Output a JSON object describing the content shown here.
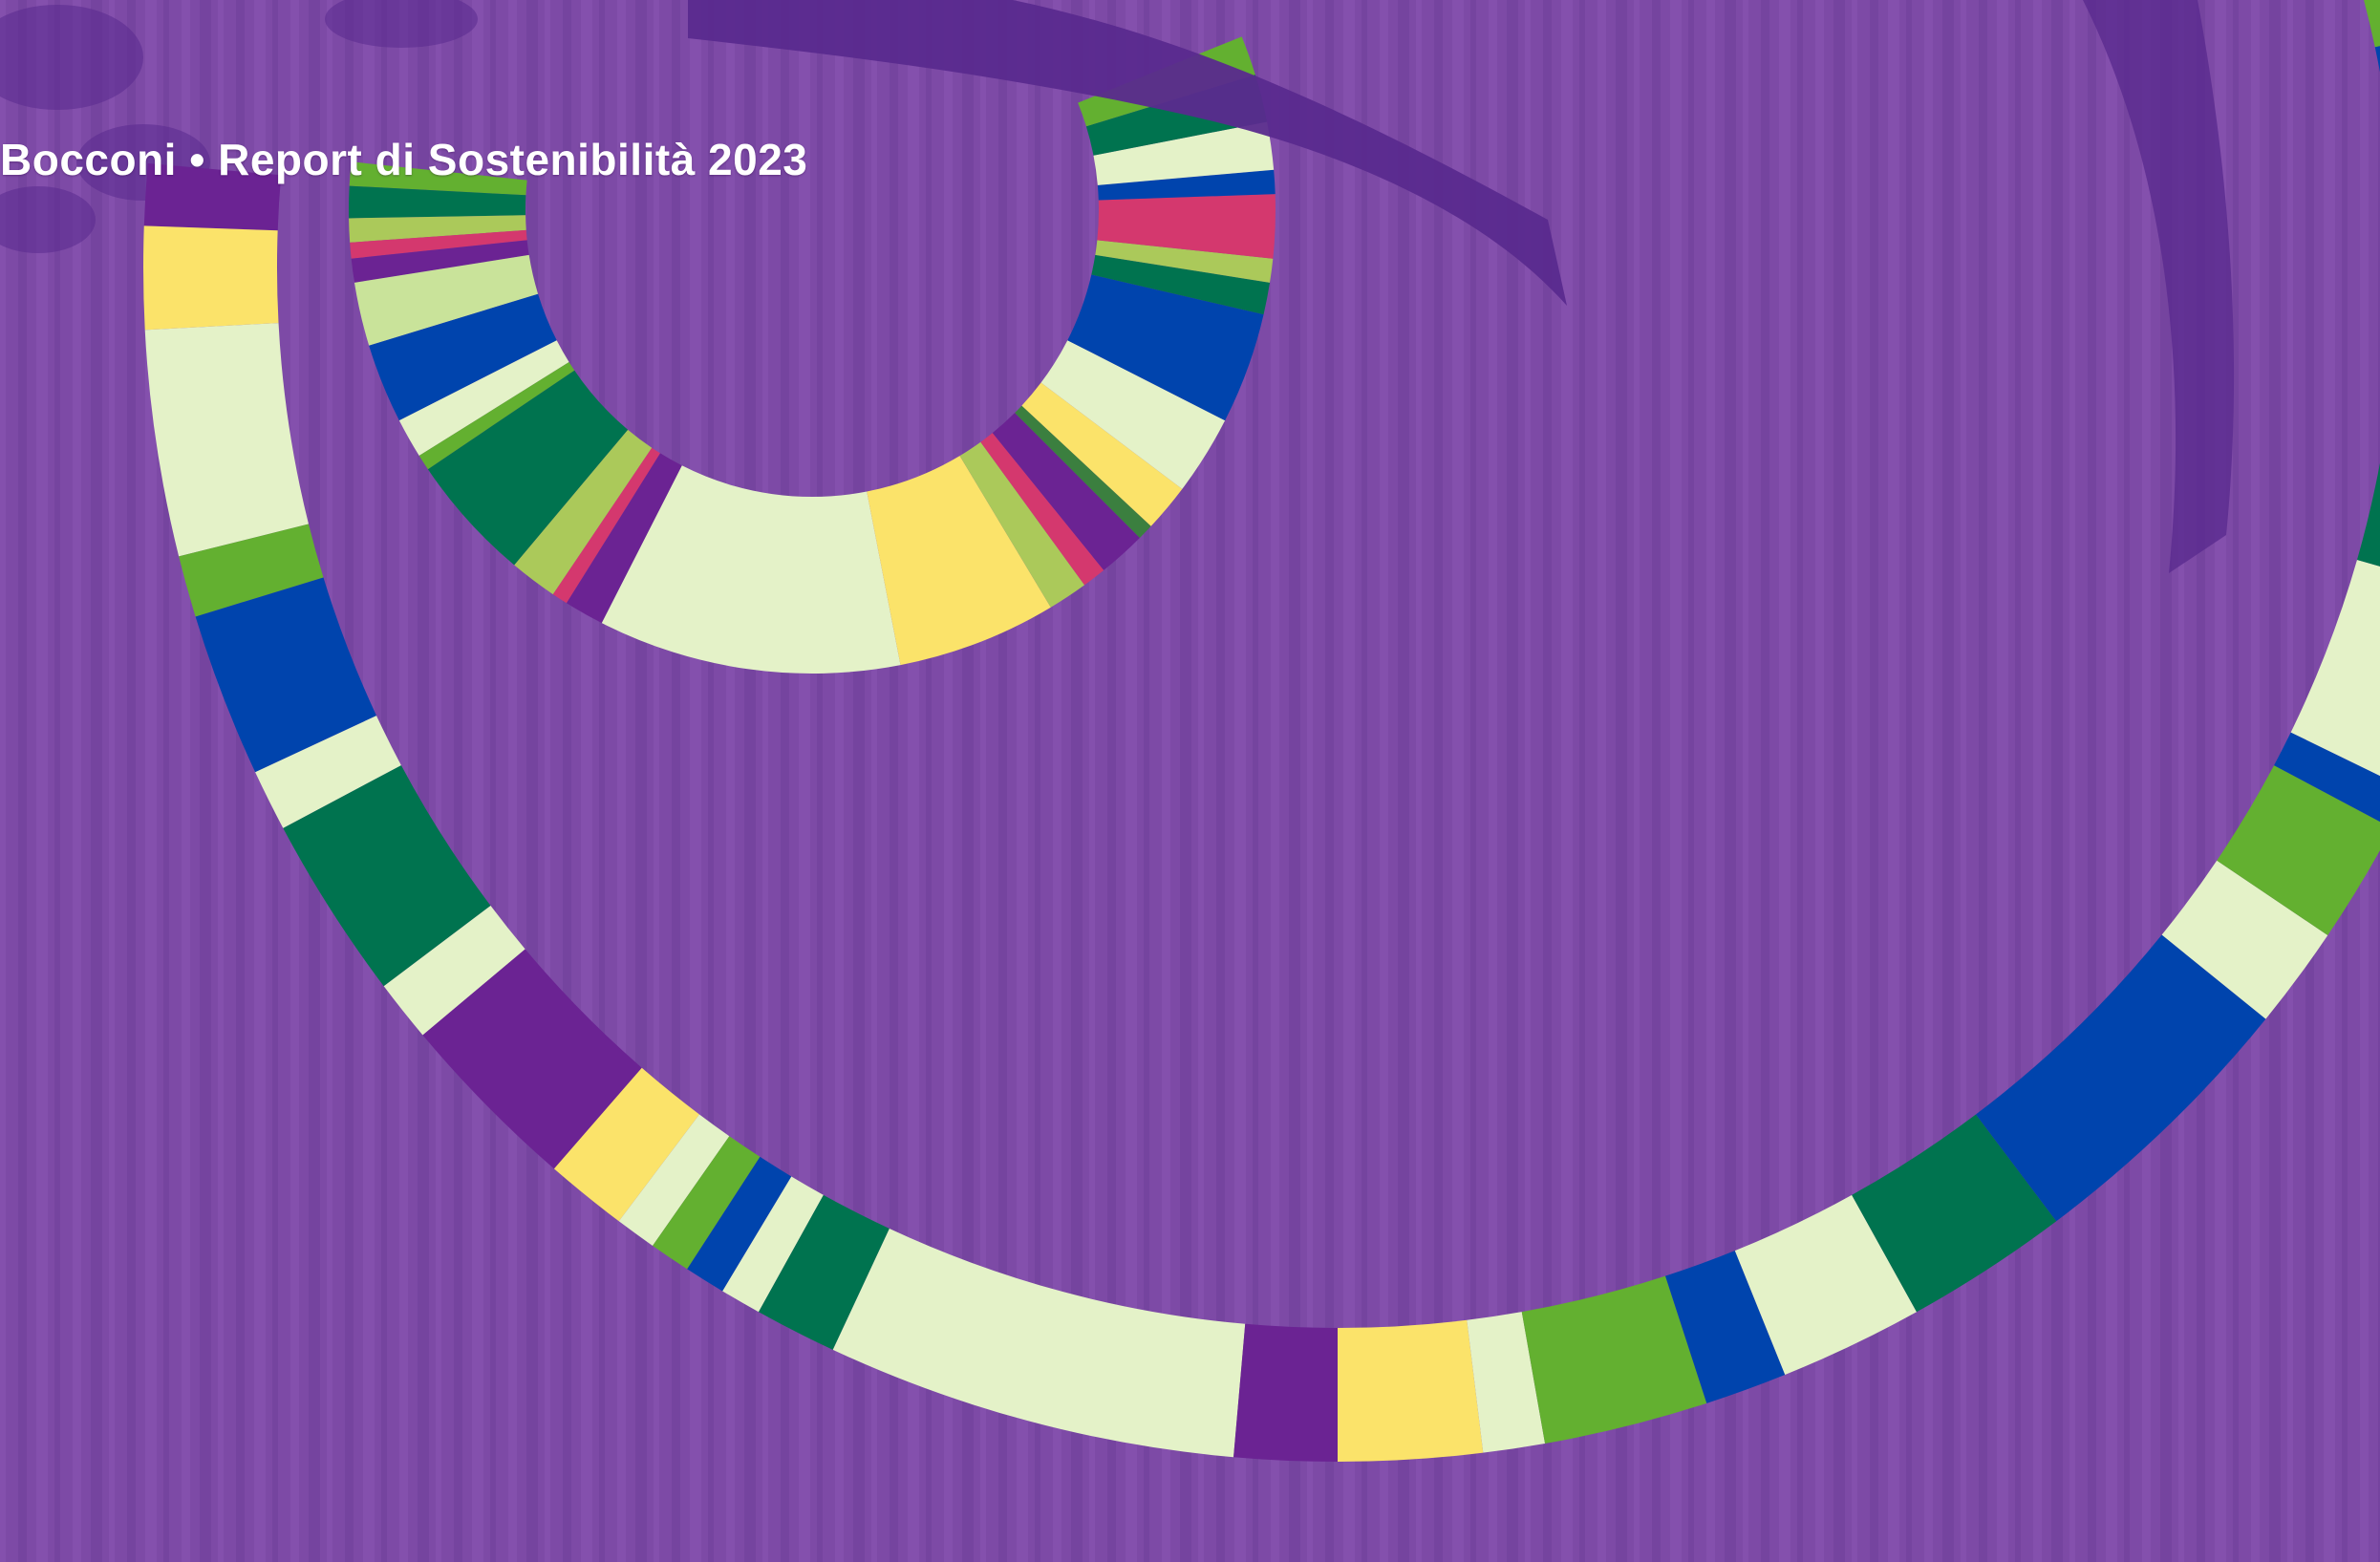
{
  "header": {
    "title": "Bocconi • Report di Sostenibilità 2023"
  },
  "colors": {
    "background": "#7d4aa6",
    "background_stripe_dark": "#6f3f99",
    "background_stripe_light": "#8a55b2",
    "deep_purple": "#5a2a8e",
    "purple": "#6b2393",
    "pale_green": "#e4f2c8",
    "light_green": "#c9e39a",
    "lime": "#abc95a",
    "green": "#63b030",
    "dark_green": "#00734f",
    "forest_green": "#3b7f3f",
    "blue": "#0044ad",
    "magenta": "#d4386e",
    "yellow": "#fbe36a"
  },
  "decoration": {
    "type": "cover-artwork",
    "motif": "concentric-color-spiral-arcs",
    "background": "vertical-stripes-with-leaf-silhouettes"
  }
}
